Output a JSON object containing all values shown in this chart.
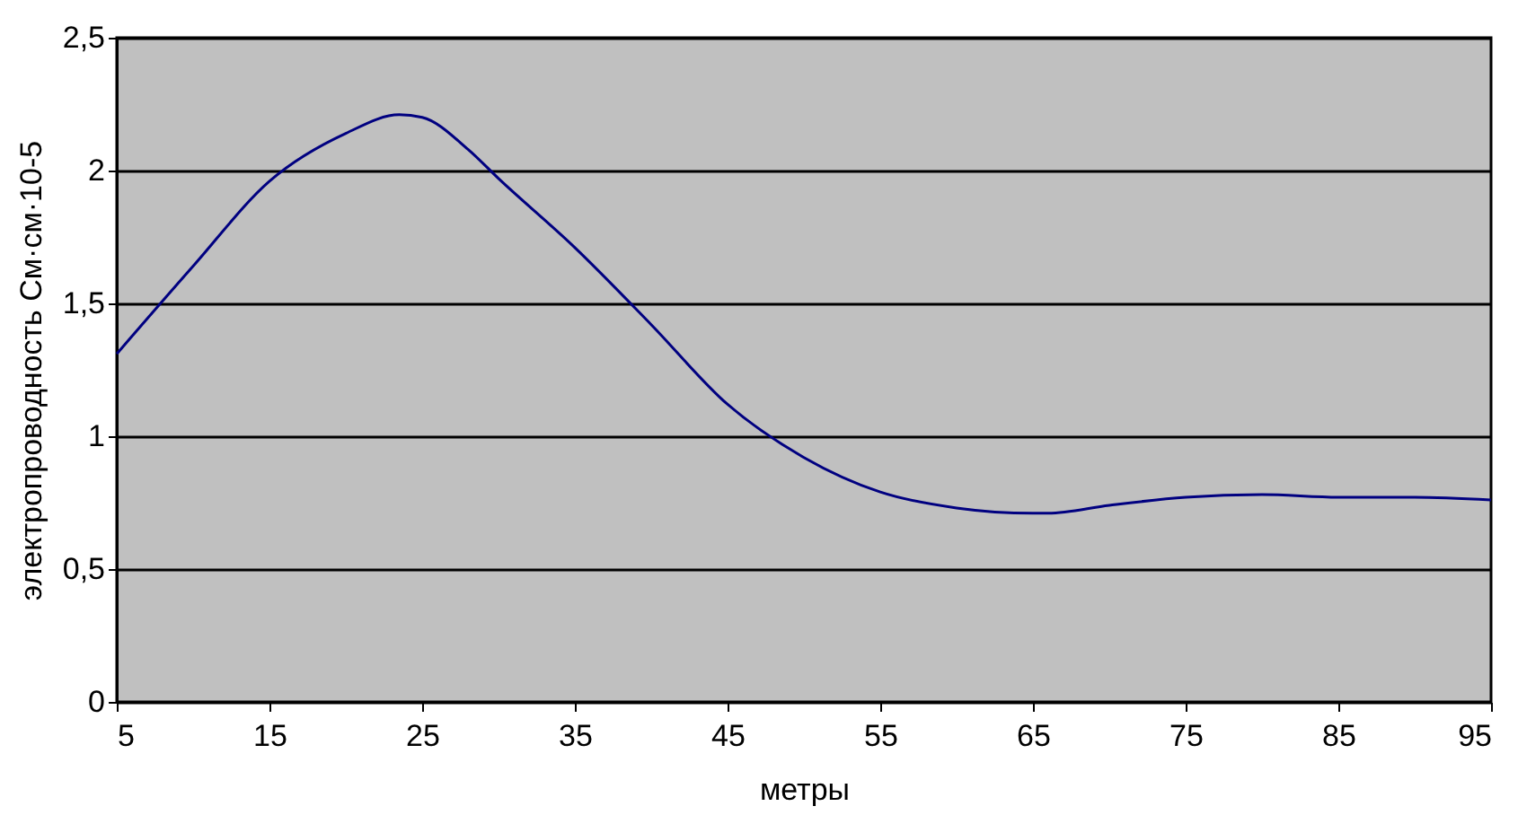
{
  "chart_data": {
    "type": "line",
    "xlabel": "метры",
    "ylabel": "электропроводность См·см·10-5",
    "x": [
      5,
      10,
      15,
      20,
      23.5,
      25,
      28,
      30,
      35,
      40,
      45,
      50,
      55,
      60,
      65,
      66,
      70,
      75,
      80,
      85,
      90,
      95
    ],
    "series": [
      {
        "color": "#000080",
        "values": [
          1.31,
          1.64,
          1.96,
          2.14,
          2.21,
          2.2,
          2.08,
          1.97,
          1.71,
          1.42,
          1.12,
          0.92,
          0.79,
          0.73,
          0.71,
          0.71,
          0.74,
          0.77,
          0.78,
          0.77,
          0.77,
          0.76
        ]
      }
    ],
    "xlim": [
      5,
      95
    ],
    "xticks": [
      5,
      15,
      25,
      35,
      45,
      55,
      65,
      75,
      85,
      95
    ],
    "ylim": [
      0,
      2.5
    ],
    "yticks": [
      0,
      {
        "value": 0.5,
        "label": "0,5"
      },
      1,
      {
        "value": 1.5,
        "label": "1,5"
      },
      2,
      {
        "value": 2.5,
        "label": "2,5"
      }
    ],
    "grid": "y",
    "marker": "none",
    "line_style": "solid"
  }
}
